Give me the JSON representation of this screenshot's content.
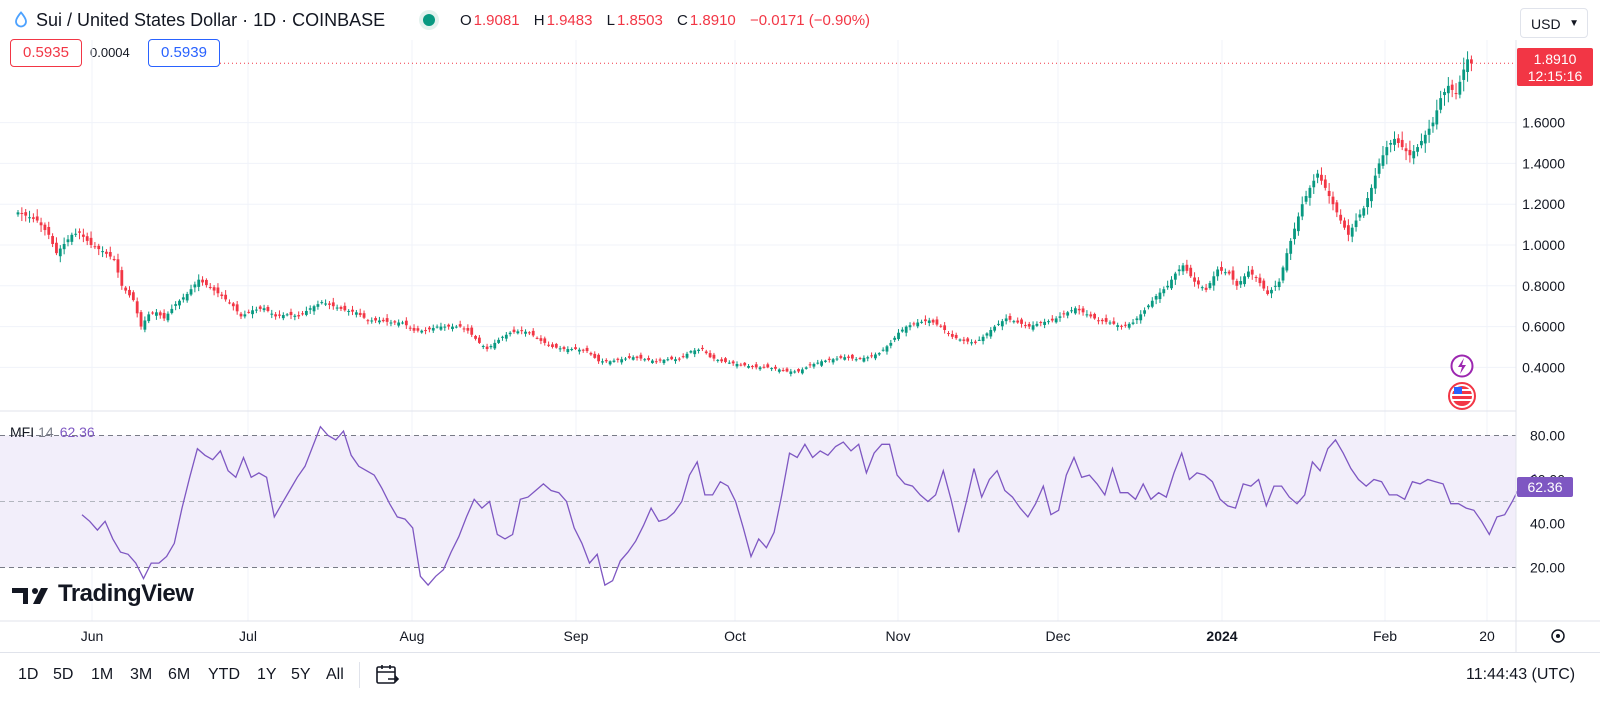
{
  "header": {
    "title": "Sui / United States Dollar · 1D · COINBASE",
    "ohlc": [
      {
        "key": "O",
        "value": "1.9081"
      },
      {
        "key": "H",
        "value": "1.9483"
      },
      {
        "key": "L",
        "value": "1.8503"
      },
      {
        "key": "C",
        "value": "1.8910"
      }
    ],
    "change": "−0.0171 (−0.90%)",
    "currency": "USD"
  },
  "trade": {
    "sell": "0.5935",
    "spread": "0.0004",
    "buy": "0.5939"
  },
  "price_tag": {
    "price": "1.8910",
    "countdown": "12:15:16"
  },
  "mfi": {
    "name": "MFI",
    "period": "14",
    "value": "62.36"
  },
  "logo": "TradingView",
  "time_ranges": [
    "1D",
    "5D",
    "1M",
    "3M",
    "6M",
    "YTD",
    "1Y",
    "5Y",
    "All"
  ],
  "clock": "11:44:43 (UTC)",
  "colors": {
    "up": "#089981",
    "down": "#f23645",
    "mfi": "#7e57c2",
    "band": "#f2eefa",
    "grid": "#f0f3fa"
  },
  "chart_data": [
    {
      "type": "candlestick",
      "title": "Sui / United States Dollar · 1D · COINBASE",
      "x_ticks": [
        "Jun",
        "Jul",
        "Aug",
        "Sep",
        "Oct",
        "Nov",
        "Dec",
        "2024",
        "Feb",
        "20"
      ],
      "y_ticks": [
        "0.4000",
        "0.6000",
        "0.8000",
        "1.0000",
        "1.2000",
        "1.4000",
        "1.6000"
      ],
      "ylim": [
        0.2,
        2.0
      ],
      "last_price": 1.891,
      "anchors": [
        [
          0,
          1.16
        ],
        [
          5,
          1.12
        ],
        [
          8,
          1.05
        ],
        [
          10,
          0.96
        ],
        [
          14,
          1.05
        ],
        [
          16,
          1.06
        ],
        [
          19,
          1.0
        ],
        [
          22,
          0.97
        ],
        [
          25,
          0.93
        ],
        [
          27,
          0.8
        ],
        [
          30,
          0.73
        ],
        [
          32,
          0.6
        ],
        [
          34,
          0.66
        ],
        [
          36,
          0.67
        ],
        [
          38,
          0.64
        ],
        [
          41,
          0.71
        ],
        [
          44,
          0.76
        ],
        [
          47,
          0.83
        ],
        [
          50,
          0.79
        ],
        [
          53,
          0.75
        ],
        [
          56,
          0.7
        ],
        [
          58,
          0.65
        ],
        [
          61,
          0.68
        ],
        [
          64,
          0.69
        ],
        [
          67,
          0.65
        ],
        [
          70,
          0.66
        ],
        [
          73,
          0.65
        ],
        [
          76,
          0.69
        ],
        [
          79,
          0.72
        ],
        [
          82,
          0.7
        ],
        [
          85,
          0.68
        ],
        [
          88,
          0.67
        ],
        [
          91,
          0.63
        ],
        [
          94,
          0.63
        ],
        [
          97,
          0.62
        ],
        [
          100,
          0.62
        ],
        [
          103,
          0.58
        ],
        [
          106,
          0.58
        ],
        [
          109,
          0.6
        ],
        [
          112,
          0.6
        ],
        [
          115,
          0.6
        ],
        [
          117,
          0.58
        ],
        [
          120,
          0.52
        ],
        [
          122,
          0.49
        ],
        [
          124,
          0.52
        ],
        [
          126,
          0.55
        ],
        [
          128,
          0.57
        ],
        [
          131,
          0.58
        ],
        [
          133,
          0.57
        ],
        [
          136,
          0.53
        ],
        [
          139,
          0.5
        ],
        [
          142,
          0.49
        ],
        [
          145,
          0.49
        ],
        [
          148,
          0.48
        ],
        [
          151,
          0.43
        ],
        [
          154,
          0.43
        ],
        [
          157,
          0.44
        ],
        [
          160,
          0.45
        ],
        [
          163,
          0.44
        ],
        [
          166,
          0.43
        ],
        [
          169,
          0.44
        ],
        [
          172,
          0.44
        ],
        [
          175,
          0.48
        ],
        [
          178,
          0.49
        ],
        [
          180,
          0.45
        ],
        [
          183,
          0.43
        ],
        [
          186,
          0.42
        ],
        [
          189,
          0.41
        ],
        [
          192,
          0.4
        ],
        [
          195,
          0.4
        ],
        [
          198,
          0.39
        ],
        [
          200,
          0.38
        ],
        [
          203,
          0.38
        ],
        [
          206,
          0.41
        ],
        [
          209,
          0.43
        ],
        [
          212,
          0.44
        ],
        [
          215,
          0.45
        ],
        [
          218,
          0.44
        ],
        [
          221,
          0.45
        ],
        [
          224,
          0.47
        ],
        [
          227,
          0.52
        ],
        [
          229,
          0.57
        ],
        [
          231,
          0.6
        ],
        [
          234,
          0.62
        ],
        [
          237,
          0.63
        ],
        [
          240,
          0.6
        ],
        [
          243,
          0.55
        ],
        [
          246,
          0.53
        ],
        [
          249,
          0.52
        ],
        [
          251,
          0.55
        ],
        [
          254,
          0.6
        ],
        [
          257,
          0.64
        ],
        [
          260,
          0.62
        ],
        [
          263,
          0.6
        ],
        [
          266,
          0.62
        ],
        [
          269,
          0.63
        ],
        [
          272,
          0.66
        ],
        [
          275,
          0.69
        ],
        [
          278,
          0.66
        ],
        [
          281,
          0.63
        ],
        [
          284,
          0.62
        ],
        [
          287,
          0.6
        ],
        [
          290,
          0.62
        ],
        [
          293,
          0.68
        ],
        [
          296,
          0.75
        ],
        [
          299,
          0.8
        ],
        [
          301,
          0.86
        ],
        [
          303,
          0.9
        ],
        [
          306,
          0.82
        ],
        [
          309,
          0.78
        ],
        [
          312,
          0.88
        ],
        [
          315,
          0.86
        ],
        [
          317,
          0.8
        ],
        [
          320,
          0.87
        ],
        [
          322,
          0.84
        ],
        [
          325,
          0.76
        ],
        [
          328,
          0.82
        ],
        [
          330,
          0.96
        ],
        [
          332,
          1.08
        ],
        [
          334,
          1.2
        ],
        [
          336,
          1.28
        ],
        [
          338,
          1.35
        ],
        [
          340,
          1.28
        ],
        [
          342,
          1.2
        ],
        [
          344,
          1.12
        ],
        [
          346,
          1.05
        ],
        [
          348,
          1.12
        ],
        [
          350,
          1.18
        ],
        [
          352,
          1.28
        ],
        [
          354,
          1.4
        ],
        [
          356,
          1.48
        ],
        [
          358,
          1.52
        ],
        [
          360,
          1.48
        ],
        [
          362,
          1.44
        ],
        [
          364,
          1.48
        ],
        [
          366,
          1.54
        ],
        [
          368,
          1.6
        ],
        [
          370,
          1.72
        ],
        [
          372,
          1.78
        ],
        [
          374,
          1.74
        ],
        [
          376,
          1.86
        ],
        [
          377,
          1.91
        ],
        [
          378,
          1.89
        ]
      ],
      "wick_scale": 0.025
    },
    {
      "type": "line",
      "title": "MFI 14",
      "value": 62.36,
      "bands": {
        "upper": 80,
        "middle": 50,
        "lower": 20
      },
      "y_ticks": [
        "20.00",
        "40.00",
        "60.00",
        "80.00"
      ],
      "ylim": [
        5,
        90
      ],
      "series": [
        [
          0,
          44
        ],
        [
          2,
          41
        ],
        [
          4,
          37
        ],
        [
          6,
          41
        ],
        [
          8,
          33
        ],
        [
          10,
          27
        ],
        [
          12,
          26
        ],
        [
          14,
          22
        ],
        [
          16,
          15
        ],
        [
          18,
          22
        ],
        [
          20,
          22
        ],
        [
          22,
          25
        ],
        [
          24,
          31
        ],
        [
          26,
          47
        ],
        [
          28,
          61
        ],
        [
          30,
          74
        ],
        [
          32,
          71
        ],
        [
          34,
          69
        ],
        [
          36,
          73
        ],
        [
          38,
          64
        ],
        [
          40,
          61
        ],
        [
          42,
          70
        ],
        [
          44,
          61
        ],
        [
          46,
          63
        ],
        [
          48,
          61
        ],
        [
          50,
          43
        ],
        [
          52,
          49
        ],
        [
          54,
          55
        ],
        [
          56,
          61
        ],
        [
          58,
          66
        ],
        [
          60,
          75
        ],
        [
          62,
          84
        ],
        [
          64,
          80
        ],
        [
          66,
          78
        ],
        [
          68,
          82
        ],
        [
          70,
          71
        ],
        [
          72,
          66
        ],
        [
          74,
          64
        ],
        [
          76,
          62
        ],
        [
          78,
          56
        ],
        [
          80,
          49
        ],
        [
          82,
          43
        ],
        [
          84,
          42
        ],
        [
          86,
          38
        ],
        [
          88,
          16
        ],
        [
          90,
          12
        ],
        [
          92,
          16
        ],
        [
          94,
          19
        ],
        [
          96,
          27
        ],
        [
          98,
          34
        ],
        [
          100,
          43
        ],
        [
          102,
          51
        ],
        [
          104,
          47
        ],
        [
          106,
          50
        ],
        [
          108,
          35
        ],
        [
          110,
          33
        ],
        [
          112,
          35
        ],
        [
          114,
          51
        ],
        [
          116,
          52
        ],
        [
          118,
          55
        ],
        [
          120,
          58
        ],
        [
          122,
          55
        ],
        [
          124,
          54
        ],
        [
          126,
          50
        ],
        [
          128,
          38
        ],
        [
          130,
          31
        ],
        [
          132,
          22
        ],
        [
          134,
          26
        ],
        [
          136,
          12
        ],
        [
          138,
          14
        ],
        [
          140,
          23
        ],
        [
          142,
          27
        ],
        [
          144,
          32
        ],
        [
          146,
          39
        ],
        [
          148,
          47
        ],
        [
          150,
          41
        ],
        [
          152,
          42
        ],
        [
          154,
          45
        ],
        [
          156,
          50
        ],
        [
          158,
          62
        ],
        [
          160,
          68
        ],
        [
          162,
          53
        ],
        [
          164,
          53
        ],
        [
          166,
          59
        ],
        [
          168,
          57
        ],
        [
          170,
          50
        ],
        [
          172,
          38
        ],
        [
          174,
          25
        ],
        [
          176,
          33
        ],
        [
          178,
          29
        ],
        [
          180,
          36
        ],
        [
          182,
          53
        ],
        [
          184,
          72
        ],
        [
          186,
          70
        ],
        [
          188,
          76
        ],
        [
          190,
          70
        ],
        [
          192,
          73
        ],
        [
          194,
          71
        ],
        [
          196,
          75
        ],
        [
          198,
          77
        ],
        [
          200,
          73
        ],
        [
          202,
          76
        ],
        [
          204,
          63
        ],
        [
          206,
          72
        ],
        [
          208,
          76
        ],
        [
          210,
          76
        ],
        [
          212,
          62
        ],
        [
          214,
          58
        ],
        [
          216,
          57
        ],
        [
          218,
          53
        ],
        [
          220,
          50
        ],
        [
          222,
          53
        ],
        [
          224,
          64
        ],
        [
          226,
          51
        ],
        [
          228,
          36
        ],
        [
          230,
          50
        ],
        [
          232,
          65
        ],
        [
          234,
          52
        ],
        [
          236,
          60
        ],
        [
          238,
          64
        ],
        [
          240,
          55
        ],
        [
          242,
          52
        ],
        [
          244,
          47
        ],
        [
          246,
          43
        ],
        [
          248,
          49
        ],
        [
          250,
          57
        ],
        [
          252,
          44
        ],
        [
          254,
          46
        ],
        [
          256,
          62
        ],
        [
          258,
          70
        ],
        [
          260,
          61
        ],
        [
          262,
          62
        ],
        [
          264,
          58
        ],
        [
          266,
          53
        ],
        [
          268,
          65
        ],
        [
          270,
          54
        ],
        [
          272,
          54
        ],
        [
          274,
          51
        ],
        [
          276,
          58
        ],
        [
          278,
          51
        ],
        [
          280,
          54
        ],
        [
          282,
          52
        ],
        [
          284,
          63
        ],
        [
          286,
          72
        ],
        [
          288,
          60
        ],
        [
          290,
          63
        ],
        [
          292,
          62
        ],
        [
          294,
          59
        ],
        [
          296,
          51
        ],
        [
          298,
          48
        ],
        [
          300,
          47
        ],
        [
          302,
          58
        ],
        [
          304,
          57
        ],
        [
          306,
          60
        ],
        [
          308,
          48
        ],
        [
          310,
          57
        ],
        [
          312,
          57
        ],
        [
          314,
          52
        ],
        [
          316,
          49
        ],
        [
          318,
          53
        ],
        [
          320,
          68
        ],
        [
          322,
          64
        ],
        [
          324,
          74
        ],
        [
          326,
          78
        ],
        [
          328,
          72
        ],
        [
          330,
          65
        ],
        [
          332,
          60
        ],
        [
          334,
          57
        ],
        [
          336,
          60
        ],
        [
          338,
          59
        ],
        [
          340,
          53
        ],
        [
          342,
          53
        ],
        [
          344,
          51
        ],
        [
          346,
          59
        ],
        [
          348,
          58
        ],
        [
          350,
          60
        ],
        [
          352,
          59
        ],
        [
          354,
          58
        ],
        [
          356,
          49
        ],
        [
          358,
          49
        ],
        [
          360,
          47
        ],
        [
          362,
          46
        ],
        [
          364,
          41
        ],
        [
          366,
          35
        ],
        [
          368,
          43
        ],
        [
          370,
          44
        ],
        [
          372,
          50
        ],
        [
          374,
          57
        ],
        [
          376,
          60
        ],
        [
          378,
          62.36
        ]
      ]
    }
  ]
}
